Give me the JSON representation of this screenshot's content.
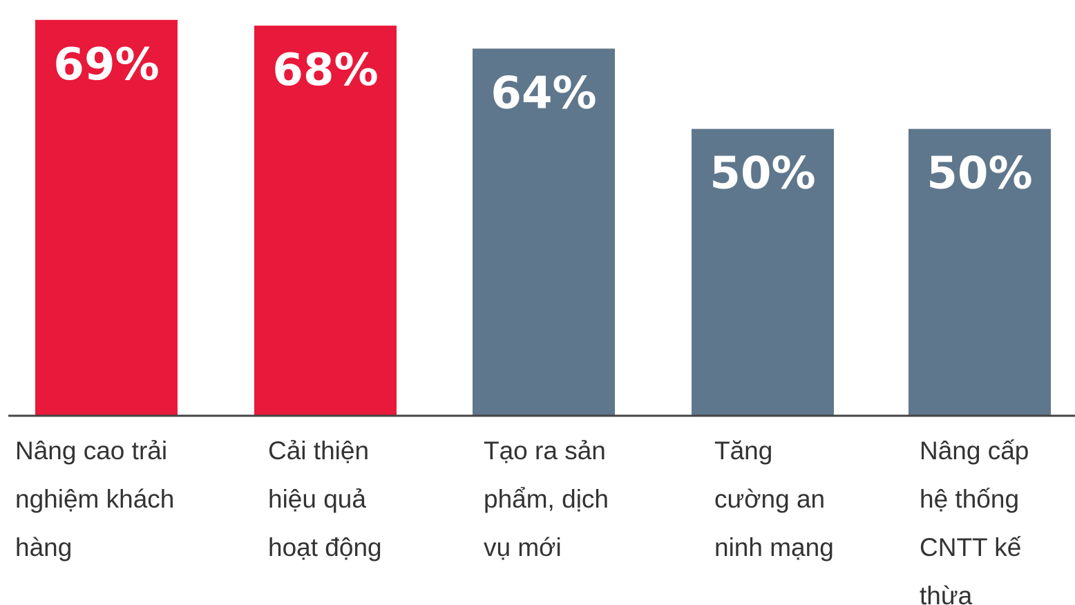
{
  "chart_data": {
    "type": "bar",
    "categories": [
      [
        "Nâng cao trải",
        "nghiệm khách",
        "hàng"
      ],
      [
        "Cải thiện",
        "hiệu quả",
        "hoạt động"
      ],
      [
        "Tạo ra sản",
        "phẩm, dịch",
        "vụ mới"
      ],
      [
        "Tăng",
        "cường an",
        "ninh mạng"
      ],
      [
        "Nâng cấp",
        "hệ thống",
        "CNTT kế",
        "thừa"
      ]
    ],
    "values": [
      69,
      68,
      64,
      50,
      50
    ],
    "value_labels": [
      "69%",
      "68%",
      "64%",
      "50%",
      "50%"
    ],
    "bar_colors": [
      "#e8193a",
      "#e8193a",
      "#5f778c",
      "#5f778c",
      "#5f778c"
    ],
    "ylim": [
      0,
      70
    ],
    "title": "",
    "xlabel": "",
    "ylabel": "",
    "grid": false,
    "axis_color": "#444444"
  }
}
